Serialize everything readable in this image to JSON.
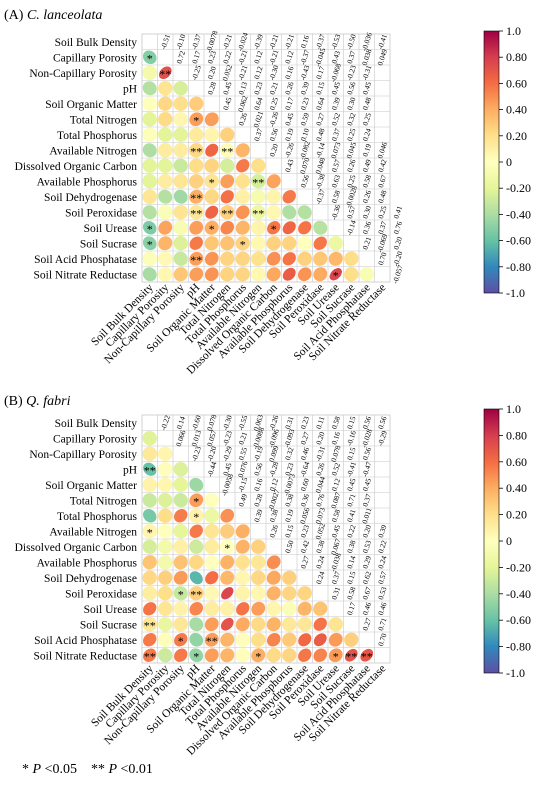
{
  "colors": {
    "scale": [
      "#5e4fa2",
      "#3288bd",
      "#66c2a5",
      "#abdda4",
      "#e6f598",
      "#ffffbf",
      "#fee08b",
      "#fdae61",
      "#f46d43",
      "#d53e4f",
      "#9e0142"
    ],
    "grid": "#c8c8c8"
  },
  "variables": [
    "Soil Bulk Density",
    "Capillary Porosity",
    "Non-Capillary Porosity",
    "pH",
    "Soil Organic Matter",
    "Total Nitrogen",
    "Total Phosphorus",
    "Available Nitrogen",
    "Dissolved Organic Carbon",
    "Available Phosphorus",
    "Soil Dehydrogenase",
    "Soil Peroxidase",
    "Soil Urease",
    "Soil Sucrase",
    "Soil Acid Phosphatase",
    "Soil Nitrate Reductase"
  ],
  "colorbar": {
    "ticks": [
      1.0,
      0.8,
      0.6,
      0.4,
      0.2,
      0,
      -0.2,
      -0.4,
      -0.6,
      -0.8,
      -1.0
    ],
    "tick_labels": [
      "1.0",
      "0.80",
      "0.60",
      "0.40",
      "0.20",
      "0",
      "-0.20",
      "-0.40",
      "-0.60",
      "-0.80",
      "-1.0"
    ]
  },
  "footnote": {
    "sig1_star": "*",
    "sig1_text": " <0.05",
    "sig2_star": "**",
    "sig2_text": " <0.01",
    "p": "P"
  },
  "chart_data": [
    {
      "type": "heatmap",
      "panel_label": "(A) ",
      "species": "C. lanceolata",
      "upper_text": [
        [
          "-0.51",
          "-0.10",
          "-0.37",
          "-0.0078",
          "-0.21",
          "-0.024",
          "-0.39",
          "-0.21",
          "-0.21",
          "0.16",
          "-0.37",
          "-0.53",
          "-0.50",
          "-0.036",
          "-0.41"
        ],
        [
          "0.72",
          "0.17",
          "0.23",
          "0.22",
          "-0.21",
          "0.12",
          "-0.21",
          "0.12",
          "-0.37",
          "-0.045",
          "0.43",
          "0.37",
          "0.038",
          "0.049"
        ],
        [
          "-0.25",
          "0.20",
          "0.052",
          "-0.21",
          "0.12",
          "-0.30",
          "0.16",
          "-0.43",
          "0.17",
          "-0.068",
          "-0.23",
          "-0.31"
        ],
        [
          "0.28",
          "0.45",
          "0.13",
          "0.23",
          "0.21",
          "0.26",
          "0.39",
          "0.15",
          "0.45",
          "0.56",
          "0.45"
        ],
        [
          "0.45",
          "0.062",
          "0.64",
          "0.25",
          "0.17",
          "0.23",
          "0.64",
          "0.39",
          "0.30",
          "0.48"
        ],
        [
          "0.26",
          "0.021",
          "-0.26",
          "0.45",
          "0.59",
          "0.27",
          "0.52",
          "0.32",
          "0.25"
        ],
        [
          "0.37",
          "0.56",
          "0.19",
          "0.10",
          "0.48",
          "0.37",
          "0.25",
          "0.24"
        ],
        [
          "0.20",
          "-0.26",
          "-0.082",
          "-0.14",
          "0.073",
          "0.045",
          "0.19",
          "0.046"
        ],
        [
          "0.43",
          "0.070",
          "0.048",
          "0.57",
          "0.26",
          "0.49",
          "0.42"
        ],
        [
          "0.56",
          "-0.38",
          "0.63",
          "0.25",
          "0.58",
          "0.67"
        ],
        [
          "-0.37",
          "0.58",
          "-0.0028",
          "0.26",
          "0.48"
        ],
        [
          "-0.36",
          "0.57",
          "0.30",
          "0.25",
          "0.41"
        ],
        [
          "-0.14",
          "0.36",
          "0.37",
          "0.76"
        ],
        [
          "0.21",
          "-0.069",
          "0.20"
        ],
        [
          "0.70",
          "-0.20"
        ],
        [
          "-0.057"
        ]
      ],
      "lower_values": [
        [],
        [
          -0.51
        ],
        [
          -0.1,
          0.72
        ],
        [
          -0.37,
          0.17,
          -0.25
        ],
        [
          -0.0078,
          0.23,
          0.2,
          0.28
        ],
        [
          -0.21,
          0.22,
          0.052,
          0.45,
          0.45
        ],
        [
          -0.024,
          -0.21,
          -0.21,
          0.13,
          0.062,
          0.26
        ],
        [
          -0.39,
          0.12,
          0.12,
          0.23,
          0.64,
          0.021,
          0.37
        ],
        [
          -0.21,
          -0.21,
          -0.3,
          0.21,
          0.25,
          -0.26,
          0.56,
          0.2
        ],
        [
          -0.21,
          0.12,
          0.16,
          0.26,
          0.17,
          0.45,
          0.19,
          -0.26,
          0.43
        ],
        [
          0.16,
          -0.37,
          -0.43,
          0.39,
          0.23,
          0.59,
          0.1,
          -0.082,
          0.07,
          0.56
        ],
        [
          -0.37,
          -0.045,
          0.17,
          0.15,
          0.64,
          0.27,
          0.48,
          -0.14,
          0.048,
          -0.38,
          -0.37
        ],
        [
          -0.53,
          0.43,
          -0.068,
          0.45,
          0.39,
          0.52,
          0.37,
          0.073,
          0.57,
          0.63,
          0.58,
          -0.36
        ],
        [
          -0.5,
          0.37,
          -0.23,
          0.56,
          0.3,
          0.32,
          0.25,
          0.045,
          0.26,
          0.25,
          -0.0028,
          0.57,
          -0.14
        ],
        [
          -0.036,
          0.038,
          -0.31,
          0.45,
          0.48,
          0.25,
          0.24,
          0.19,
          0.49,
          0.58,
          0.26,
          0.3,
          0.36,
          0.21
        ],
        [
          -0.41,
          0.049,
          0.3,
          0.45,
          0.48,
          0.25,
          0.24,
          0.046,
          0.42,
          0.67,
          0.48,
          0.41,
          0.76,
          0.2,
          -0.057
        ]
      ],
      "lower_stars": [
        [],
        [
          "*"
        ],
        [
          "",
          "**"
        ],
        [
          "",
          "",
          "",
          "*"
        ],
        [
          "",
          "",
          "",
          "",
          ""
        ],
        [
          "",
          "",
          "",
          "*",
          ""
        ],
        [
          "",
          "",
          "",
          "",
          "",
          ""
        ],
        [
          "",
          "",
          "",
          "**",
          "",
          "**",
          ""
        ],
        [
          "",
          "",
          "",
          "",
          "",
          "",
          "",
          ""
        ],
        [
          "",
          "",
          "",
          "",
          "*",
          "",
          "",
          "**",
          ""
        ],
        [
          "",
          "",
          "",
          "**",
          "",
          "",
          "",
          "",
          ""
        ],
        [
          "",
          "",
          "",
          "**",
          "",
          "**",
          "",
          "**",
          "",
          ""
        ],
        [
          "*",
          "",
          "",
          "",
          "*",
          "",
          "",
          "",
          "*",
          "",
          "",
          ""
        ],
        [
          "*",
          "",
          "",
          "",
          "",
          "",
          "*",
          "",
          "",
          "",
          "",
          "",
          ""
        ],
        [
          "",
          "",
          "",
          "**",
          "",
          "",
          "",
          "",
          "",
          "",
          "",
          "",
          "",
          ""
        ],
        [
          "",
          "",
          "",
          "",
          "",
          "",
          "",
          "",
          "",
          "",
          "",
          "",
          "*",
          "",
          ""
        ]
      ]
    },
    {
      "type": "heatmap",
      "panel_label": "(B) ",
      "species": "Q. fabri",
      "upper_text": [
        [
          "-0.22",
          "0.14",
          "-0.60",
          "0.078",
          "-0.30",
          "-0.55",
          "0.063",
          "-0.26",
          "0.31",
          "0.23",
          "0.11",
          "0.58",
          "0.15",
          "0.56",
          "0.56"
        ],
        [
          "0.066",
          "0.013",
          "0.057",
          "-0.23",
          "0.21",
          "-0.0088",
          "-0.096",
          "-0.093",
          "0.27",
          "0.20",
          "0.16",
          "-0.16",
          "-0.028",
          "-0.29"
        ],
        [
          "-0.23",
          "-0.20",
          "-0.29",
          "0.55",
          "-0.19",
          "0.099",
          "0.32",
          "0.46",
          "-0.31",
          "0.078",
          "0.15",
          "0.56"
        ],
        [
          "-0.44",
          "0.45",
          "0.076",
          "0.56",
          "-0.28",
          "0.23",
          "-0.64",
          "0.26",
          "0.52",
          "-0.41",
          "-0.47"
        ],
        [
          "-0.0058",
          "-0.15",
          "0.16",
          "0.12",
          "-0.0073",
          "0.60",
          "0.044",
          "0.12",
          "0.45",
          "0.45"
        ],
        [
          "0.49",
          "0.28",
          "-0.0027",
          "0.38",
          "0.36",
          "0.76",
          "0.087",
          "0.71",
          "0.37"
        ],
        [
          "0.39",
          "0.38",
          "0.19",
          "0.056",
          "0.073",
          "0.58",
          "0.41",
          "0.011"
        ],
        [
          "0.26",
          "0.15",
          "0.23",
          "0.052",
          "0.45",
          "0.22",
          "0.20",
          "0.39"
        ],
        [
          "0.50",
          "0.42",
          "0.38",
          "0.067",
          "0.38",
          "0.53",
          "0.22"
        ],
        [
          "0.27",
          "0.24",
          "-0.038",
          "0.14",
          "0.29",
          "0.24"
        ],
        [
          "0.24",
          "0.37",
          "0.15",
          "0.62",
          "0.57"
        ],
        [
          "0.31",
          "0.58",
          "0.67",
          "0.53"
        ],
        [
          "0.17",
          "0.46",
          "0.46"
        ],
        [
          "0.27",
          "0.71"
        ],
        [
          "0.70"
        ],
        []
      ],
      "lower_values": [
        [],
        [
          -0.22
        ],
        [
          0.14,
          0.066
        ],
        [
          -0.6,
          0.013,
          -0.23
        ],
        [
          0.078,
          0.057,
          -0.2,
          -0.44
        ],
        [
          -0.3,
          -0.23,
          -0.29,
          0.45,
          -0.0058
        ],
        [
          -0.55,
          0.21,
          0.55,
          0.076,
          -0.15,
          0.49
        ],
        [
          0.063,
          -0.0088,
          -0.19,
          0.56,
          0.16,
          0.28,
          0.39
        ],
        [
          -0.26,
          -0.096,
          0.099,
          -0.28,
          0.12,
          -0.0027,
          0.38,
          0.26
        ],
        [
          0.31,
          -0.093,
          0.32,
          0.23,
          -0.0073,
          0.38,
          0.19,
          0.15,
          0.5
        ],
        [
          0.23,
          0.27,
          0.46,
          -0.64,
          0.6,
          0.36,
          0.056,
          0.23,
          0.42,
          0.27
        ],
        [
          0.11,
          0.2,
          -0.31,
          0.26,
          0.044,
          0.76,
          0.073,
          0.052,
          0.38,
          0.24,
          0.24
        ],
        [
          0.58,
          0.16,
          0.078,
          0.52,
          0.12,
          0.087,
          0.58,
          0.45,
          0.067,
          -0.038,
          0.37,
          0.31
        ],
        [
          0.15,
          -0.16,
          0.15,
          -0.41,
          0.45,
          0.71,
          0.41,
          0.22,
          0.38,
          0.14,
          0.15,
          0.58,
          0.17
        ],
        [
          0.56,
          -0.028,
          0.56,
          -0.47,
          0.45,
          0.37,
          0.011,
          0.2,
          0.53,
          0.29,
          0.62,
          0.67,
          0.46,
          0.27
        ],
        [
          0.56,
          -0.29,
          0.56,
          -0.47,
          0.45,
          0.37,
          0.011,
          0.39,
          0.22,
          0.24,
          0.57,
          0.53,
          0.46,
          0.71,
          0.7
        ]
      ],
      "lower_stars": [
        [],
        [
          ""
        ],
        [
          "",
          ""
        ],
        [
          "**",
          "",
          ""
        ],
        [
          "",
          "",
          "",
          ""
        ],
        [
          "",
          "",
          "",
          "*",
          ""
        ],
        [
          "",
          "",
          "",
          "*",
          "",
          ""
        ],
        [
          "*",
          "",
          "",
          "",
          "",
          "",
          ""
        ],
        [
          "",
          "",
          "",
          "",
          "",
          "*",
          "",
          ""
        ],
        [
          "",
          "",
          "",
          "",
          "",
          "",
          "",
          "",
          ""
        ],
        [
          "",
          "",
          "",
          "",
          "",
          "",
          "",
          "",
          "",
          ""
        ],
        [
          "",
          "",
          "*",
          "**",
          "",
          "",
          "",
          "",
          "",
          "",
          ""
        ],
        [
          "",
          "",
          "",
          "",
          "",
          "",
          "",
          "",
          "",
          "",
          "",
          ""
        ],
        [
          "**",
          "",
          "",
          "",
          "",
          "",
          "",
          "",
          "",
          "",
          "",
          "",
          ""
        ],
        [
          "",
          "",
          "*",
          "",
          "**",
          "",
          "",
          "",
          "",
          "",
          "",
          "",
          "",
          ""
        ],
        [
          "**",
          "",
          "",
          "*",
          "",
          "",
          "",
          "*",
          "",
          "",
          "",
          "",
          "*",
          "**",
          "**"
        ]
      ]
    }
  ]
}
